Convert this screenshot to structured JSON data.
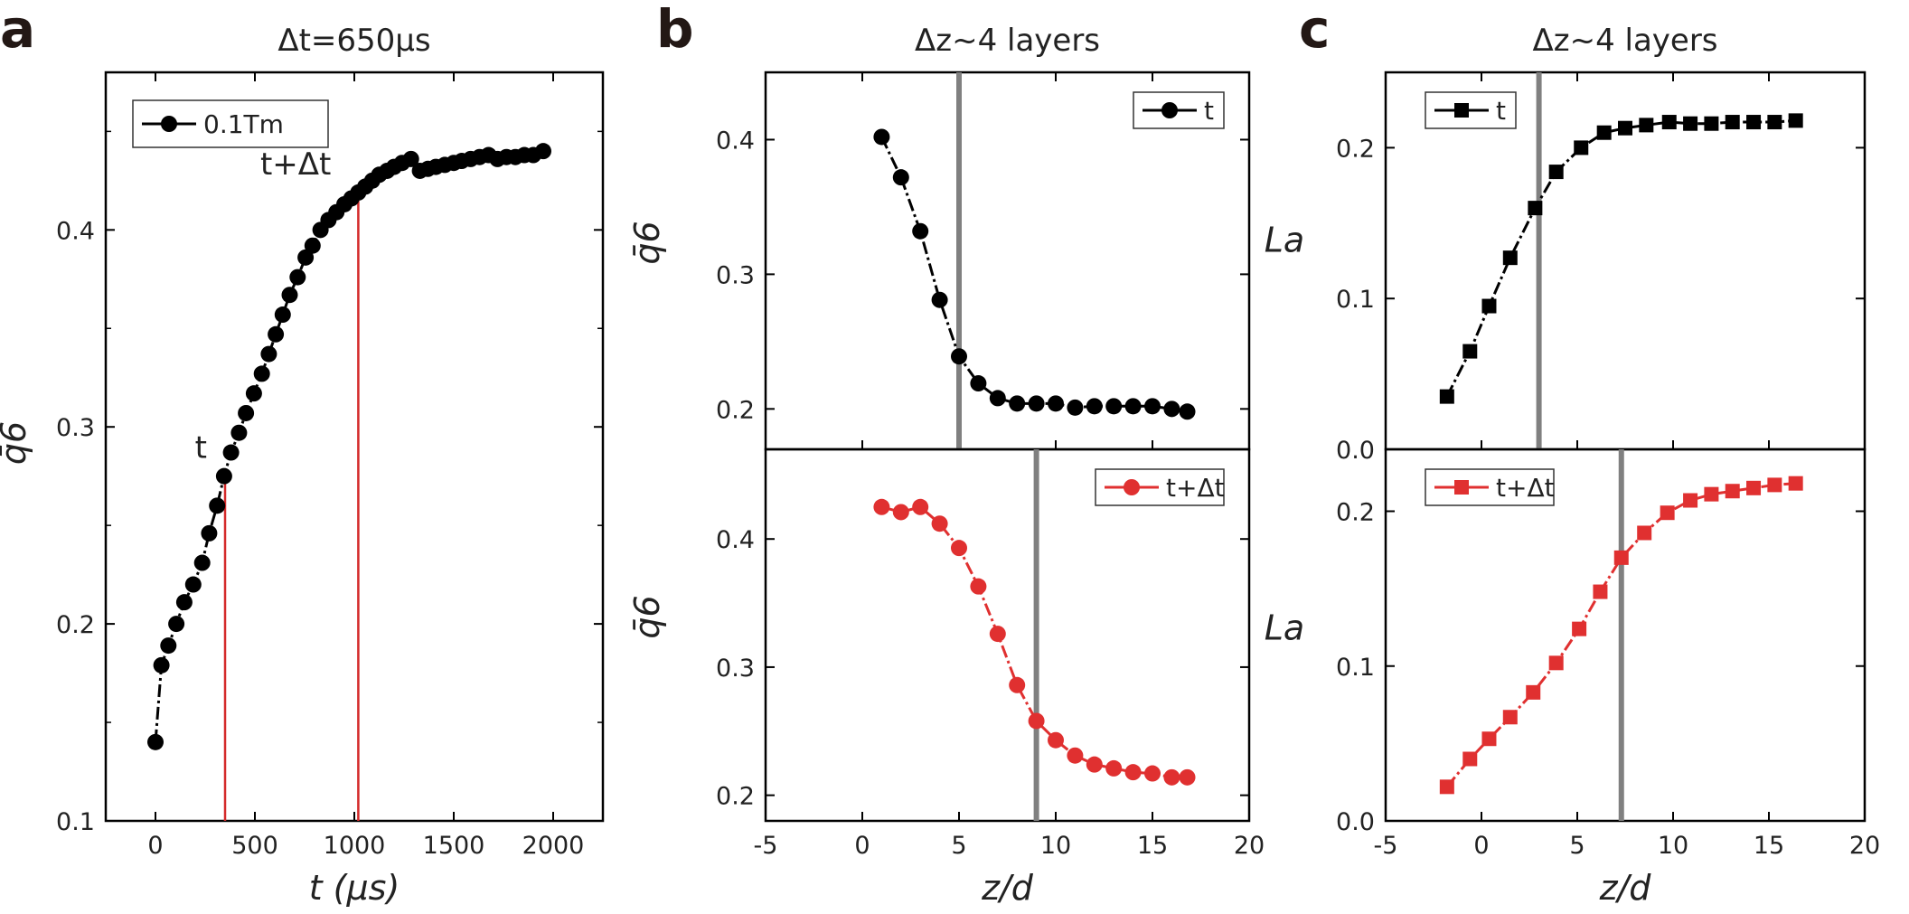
{
  "panel_labels": {
    "a": "a",
    "b": "b",
    "c": "c"
  },
  "chart_data": [
    {
      "id": "a",
      "type": "scatter",
      "title": "Δt=650μs",
      "xlabel": "t (μs)",
      "ylabel": "q̄6",
      "xlim": [
        -250,
        2250
      ],
      "ylim": [
        0.1,
        0.48
      ],
      "xticks": [
        0,
        500,
        1000,
        1500,
        2000
      ],
      "xtick_labels": [
        "0",
        "500",
        "1000",
        "1500",
        "2000"
      ],
      "yticks": [
        0.1,
        0.2,
        0.3,
        0.4
      ],
      "ytick_labels": [
        "0.1",
        "0.2",
        "0.3",
        "0.4"
      ],
      "legend": "0.1Tm",
      "legend_position": "top-left",
      "annotations": [
        {
          "text": "t",
          "x": 350
        },
        {
          "text": "t+Δt",
          "x": 1020
        }
      ],
      "series": [
        {
          "name": "0.1Tm",
          "color": "#000000",
          "marker": "circle",
          "x": [
            0,
            30,
            65,
            105,
            145,
            190,
            235,
            270,
            310,
            345,
            380,
            420,
            455,
            495,
            535,
            570,
            605,
            640,
            675,
            715,
            755,
            790,
            830,
            870,
            910,
            950,
            985,
            1020,
            1055,
            1090,
            1125,
            1165,
            1200,
            1240,
            1285,
            1330,
            1370,
            1410,
            1455,
            1500,
            1540,
            1585,
            1630,
            1675,
            1720,
            1765,
            1810,
            1855,
            1900,
            1950
          ],
          "y": [
            0.14,
            0.179,
            0.189,
            0.2,
            0.211,
            0.22,
            0.231,
            0.246,
            0.26,
            0.275,
            0.287,
            0.297,
            0.307,
            0.317,
            0.327,
            0.337,
            0.347,
            0.357,
            0.367,
            0.376,
            0.386,
            0.392,
            0.4,
            0.405,
            0.409,
            0.413,
            0.416,
            0.419,
            0.422,
            0.425,
            0.428,
            0.43,
            0.432,
            0.434,
            0.436,
            0.43,
            0.431,
            0.432,
            0.433,
            0.434,
            0.435,
            0.436,
            0.437,
            0.438,
            0.436,
            0.437,
            0.437,
            0.438,
            0.438,
            0.44
          ]
        }
      ]
    },
    {
      "id": "b",
      "type": "line",
      "title": "Δz~4 layers",
      "xlabel": "z/d",
      "xlim": [
        -5,
        20
      ],
      "xticks": [
        -5,
        0,
        5,
        10,
        15,
        20
      ],
      "xtick_labels": [
        "-5",
        "0",
        "5",
        "10",
        "15",
        "20"
      ],
      "subplots": [
        {
          "ylabel": "q̄6",
          "ylim": [
            0.17,
            0.45
          ],
          "yticks": [
            0.2,
            0.3,
            0.4
          ],
          "ytick_labels": [
            "0.2",
            "0.3",
            "0.4"
          ],
          "vline": 5,
          "legend": "t",
          "legend_position": "top-right",
          "series": [
            {
              "name": "t",
              "color": "#000000",
              "marker": "circle",
              "x": [
                1,
                2,
                3,
                4,
                5,
                6,
                7,
                8,
                9,
                10,
                11,
                12,
                13,
                14,
                15,
                16,
                16.8
              ],
              "y": [
                0.402,
                0.372,
                0.332,
                0.281,
                0.239,
                0.219,
                0.208,
                0.204,
                0.204,
                0.204,
                0.201,
                0.202,
                0.202,
                0.202,
                0.202,
                0.2,
                0.198
              ]
            }
          ]
        },
        {
          "ylabel": "q̄6",
          "ylim": [
            0.18,
            0.47
          ],
          "yticks": [
            0.2,
            0.3,
            0.4
          ],
          "ytick_labels": [
            "0.2",
            "0.3",
            "0.4"
          ],
          "vline": 9,
          "legend": "t+Δt",
          "legend_position": "top-right",
          "series": [
            {
              "name": "t+Δt",
              "color": "#e03030",
              "marker": "circle",
              "x": [
                1,
                2,
                3,
                4,
                5,
                6,
                7,
                8,
                9,
                10,
                11,
                12,
                13,
                14,
                15,
                16,
                16.8
              ],
              "y": [
                0.425,
                0.421,
                0.425,
                0.412,
                0.393,
                0.363,
                0.326,
                0.286,
                0.258,
                0.243,
                0.231,
                0.224,
                0.221,
                0.218,
                0.217,
                0.214,
                0.214
              ]
            }
          ]
        }
      ]
    },
    {
      "id": "c",
      "type": "line",
      "title": "Δz~4 layers",
      "xlabel": "z/d",
      "xlim": [
        -5,
        20
      ],
      "xticks": [
        -5,
        0,
        5,
        10,
        15,
        20
      ],
      "xtick_labels": [
        "-5",
        "0",
        "5",
        "10",
        "15",
        "20"
      ],
      "subplots": [
        {
          "ylabel": "La",
          "ylim": [
            0.0,
            0.25
          ],
          "yticks": [
            0.0,
            0.1,
            0.2
          ],
          "ytick_labels": [
            "0.0",
            "0.1",
            "0.2"
          ],
          "vline": 3,
          "legend": "t",
          "legend_position": "top-left",
          "series": [
            {
              "name": "t",
              "color": "#000000",
              "marker": "square",
              "x": [
                -1.8,
                -0.6,
                0.4,
                1.5,
                2.8,
                3.9,
                5.2,
                6.4,
                7.5,
                8.6,
                9.8,
                10.9,
                12,
                13.1,
                14.2,
                15.3,
                16.4
              ],
              "y": [
                0.035,
                0.065,
                0.095,
                0.127,
                0.16,
                0.184,
                0.2,
                0.21,
                0.213,
                0.215,
                0.217,
                0.216,
                0.216,
                0.217,
                0.217,
                0.217,
                0.218
              ]
            }
          ]
        },
        {
          "ylabel": "La",
          "ylim": [
            0.0,
            0.24
          ],
          "yticks": [
            0.0,
            0.1,
            0.2
          ],
          "ytick_labels": [
            "0.0",
            "0.1",
            "0.2"
          ],
          "vline": 7.3,
          "legend": "t+Δt",
          "legend_position": "top-left",
          "series": [
            {
              "name": "t+Δt",
              "color": "#e03030",
              "marker": "square",
              "x": [
                -1.8,
                -0.6,
                0.4,
                1.5,
                2.7,
                3.9,
                5.1,
                6.2,
                7.3,
                8.5,
                9.7,
                10.9,
                12,
                13.1,
                14.2,
                15.3,
                16.4
              ],
              "y": [
                0.022,
                0.04,
                0.053,
                0.067,
                0.083,
                0.102,
                0.124,
                0.148,
                0.17,
                0.186,
                0.199,
                0.207,
                0.211,
                0.213,
                0.215,
                0.217,
                0.218
              ]
            }
          ]
        }
      ]
    }
  ]
}
